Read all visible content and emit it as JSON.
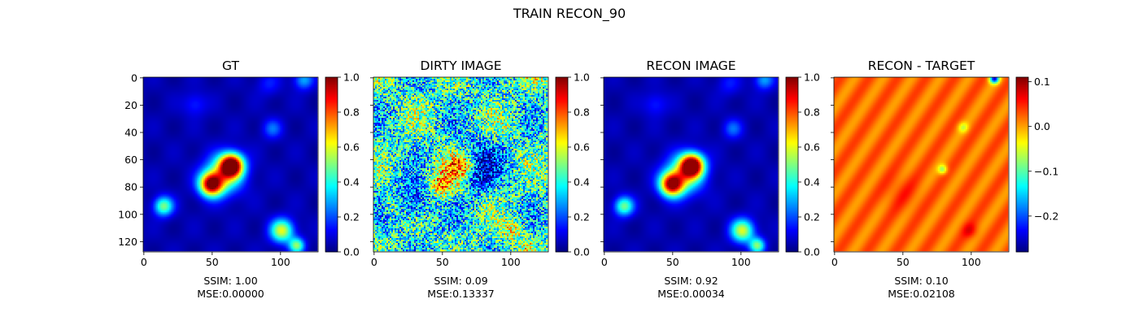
{
  "figure": {
    "suptitle": "TRAIN RECON_90"
  },
  "colormap": "jet",
  "chart_data": [
    {
      "type": "heatmap",
      "title": "GT",
      "xticks": [
        0,
        50,
        100
      ],
      "yticks": [
        0,
        20,
        40,
        60,
        80,
        100,
        120
      ],
      "show_ytick_labels": true,
      "colorbar": {
        "vmin": 0.0,
        "vmax": 1.0,
        "ticks": [
          "0.0",
          "0.2",
          "0.4",
          "0.6",
          "0.8",
          "1.0"
        ]
      },
      "metrics": {
        "ssim": "SSIM: 1.00",
        "mse": "MSE:0.00000"
      }
    },
    {
      "type": "heatmap",
      "title": "DIRTY IMAGE",
      "xticks": [
        0,
        50,
        100
      ],
      "yticks": [
        0,
        20,
        40,
        60,
        80,
        100,
        120
      ],
      "show_ytick_labels": false,
      "colorbar": {
        "vmin": 0.0,
        "vmax": 1.0,
        "ticks": [
          "0.0",
          "0.2",
          "0.4",
          "0.6",
          "0.8",
          "1.0"
        ]
      },
      "metrics": {
        "ssim": "SSIM: 0.09",
        "mse": "MSE:0.13337"
      }
    },
    {
      "type": "heatmap",
      "title": "RECON IMAGE",
      "xticks": [
        0,
        50,
        100
      ],
      "yticks": [
        0,
        20,
        40,
        60,
        80,
        100,
        120
      ],
      "show_ytick_labels": false,
      "colorbar": {
        "vmin": 0.0,
        "vmax": 1.0,
        "ticks": [
          "0.0",
          "0.2",
          "0.4",
          "0.6",
          "0.8",
          "1.0"
        ]
      },
      "metrics": {
        "ssim": "SSIM: 0.92",
        "mse": "MSE:0.00034"
      }
    },
    {
      "type": "heatmap",
      "title": "RECON - TARGET",
      "xticks": [
        0,
        50,
        100
      ],
      "yticks": [
        0,
        20,
        40,
        60,
        80,
        100,
        120
      ],
      "show_ytick_labels": false,
      "colorbar": {
        "vmin": -0.28,
        "vmax": 0.11,
        "ticks": [
          "−0.2",
          "−0.1",
          "0.0",
          "0.1"
        ]
      },
      "metrics": {
        "ssim": "SSIM: 0.10",
        "mse": "MSE:0.02108"
      }
    }
  ]
}
